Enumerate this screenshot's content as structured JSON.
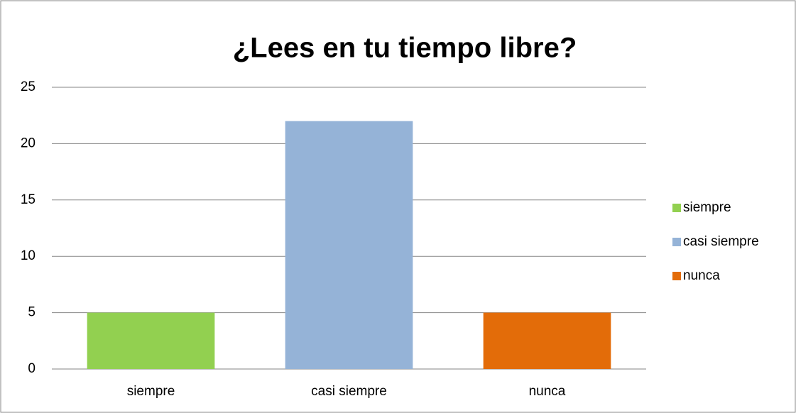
{
  "chart_data": {
    "type": "bar",
    "title": "¿Lees en tu tiempo libre?",
    "categories": [
      "siempre",
      "casi siempre",
      "nunca"
    ],
    "values": [
      5,
      22,
      5
    ],
    "colors": [
      "#92d050",
      "#95b3d7",
      "#e36c09"
    ],
    "ylim": [
      0,
      25
    ],
    "yticks": [
      0,
      5,
      10,
      15,
      20,
      25
    ],
    "grid": true,
    "legend": "right"
  }
}
